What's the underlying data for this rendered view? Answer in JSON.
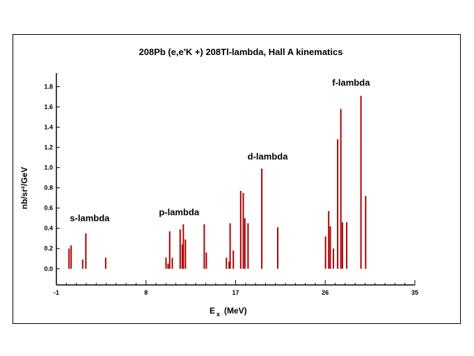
{
  "chart_data": {
    "type": "bar",
    "title": "208Pb (e,e'K +) 208Tl-lambda,  Hall A kinematics",
    "xlabel": "E",
    "xlabel_sub": "x",
    "xlabel_unit": "(MeV)",
    "ylabel": "nb/sr²/GeV",
    "xlim": [
      -1,
      35
    ],
    "ylim": [
      -0.16,
      1.9
    ],
    "xticks": [
      {
        "value": -1,
        "label": "-1"
      },
      {
        "value": 8,
        "label": "8"
      },
      {
        "value": 17,
        "label": "17"
      },
      {
        "value": 26,
        "label": "26"
      },
      {
        "value": 35,
        "label": "35"
      }
    ],
    "yticks": [
      {
        "value": 0.0,
        "label": "0.0"
      },
      {
        "value": 0.2,
        "label": "0.2"
      },
      {
        "value": 0.4,
        "label": "0.4"
      },
      {
        "value": 0.6,
        "label": "0.6"
      },
      {
        "value": 0.8,
        "label": "0.8"
      },
      {
        "value": 1.0,
        "label": "1.0"
      },
      {
        "value": 1.2,
        "label": "1.2"
      },
      {
        "value": 1.4,
        "label": "1.4"
      },
      {
        "value": 1.6,
        "label": "1.6"
      },
      {
        "value": 1.8,
        "label": "1.8"
      }
    ],
    "bar_color": "#aa0000",
    "bars": [
      {
        "x": 0.27,
        "y": 0.2
      },
      {
        "x": 0.48,
        "y": 0.23
      },
      {
        "x": 1.64,
        "y": 0.09
      },
      {
        "x": 1.96,
        "y": 0.35
      },
      {
        "x": 3.95,
        "y": 0.11
      },
      {
        "x": 10.01,
        "y": 0.11
      },
      {
        "x": 10.22,
        "y": 0.05
      },
      {
        "x": 10.38,
        "y": 0.37
      },
      {
        "x": 10.64,
        "y": 0.11
      },
      {
        "x": 11.43,
        "y": 0.39
      },
      {
        "x": 11.64,
        "y": 0.24
      },
      {
        "x": 11.75,
        "y": 0.44
      },
      {
        "x": 11.96,
        "y": 0.29
      },
      {
        "x": 13.85,
        "y": 0.44
      },
      {
        "x": 14.06,
        "y": 0.16
      },
      {
        "x": 16.08,
        "y": 0.11
      },
      {
        "x": 16.35,
        "y": 0.07
      },
      {
        "x": 16.45,
        "y": 0.45
      },
      {
        "x": 16.77,
        "y": 0.18
      },
      {
        "x": 17.51,
        "y": 0.77
      },
      {
        "x": 17.77,
        "y": 0.75
      },
      {
        "x": 17.93,
        "y": 0.5
      },
      {
        "x": 18.25,
        "y": 0.45
      },
      {
        "x": 19.63,
        "y": 0.99
      },
      {
        "x": 21.23,
        "y": 0.41
      },
      {
        "x": 26.03,
        "y": 0.32
      },
      {
        "x": 26.35,
        "y": 0.57
      },
      {
        "x": 26.51,
        "y": 0.42
      },
      {
        "x": 26.82,
        "y": 0.2
      },
      {
        "x": 27.25,
        "y": 1.28
      },
      {
        "x": 27.57,
        "y": 1.58
      },
      {
        "x": 27.73,
        "y": 0.46
      },
      {
        "x": 28.16,
        "y": 0.46
      },
      {
        "x": 29.59,
        "y": 1.71
      },
      {
        "x": 30.06,
        "y": 0.72
      }
    ],
    "annotations": [
      {
        "text": "s-lambda",
        "x": 0.35,
        "y": 0.47
      },
      {
        "text": "p-lambda",
        "x": 9.3,
        "y": 0.53
      },
      {
        "text": "d-lambda",
        "x": 18.2,
        "y": 1.08
      },
      {
        "text": "f-lambda",
        "x": 26.7,
        "y": 1.81
      }
    ]
  }
}
